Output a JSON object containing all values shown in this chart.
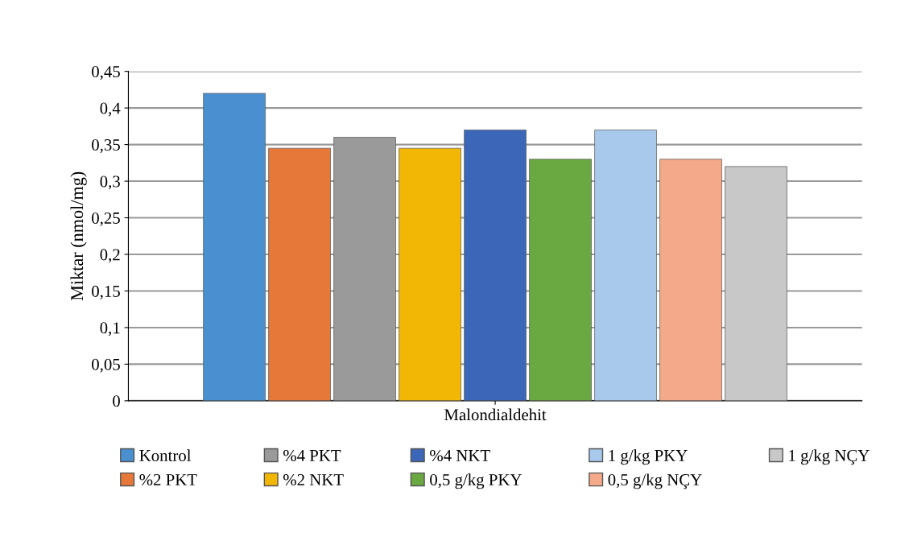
{
  "chart_data": {
    "type": "bar",
    "ylabel": "Miktar (nmol/mg)",
    "categories": [
      "Malondialdehit"
    ],
    "series": [
      {
        "name": "Kontrol",
        "color": "#4a8fd0",
        "values": [
          0.42
        ]
      },
      {
        "name": "%2 PKT",
        "color": "#e6783a",
        "values": [
          0.345
        ]
      },
      {
        "name": "%4 PKT",
        "color": "#9a9a9a",
        "values": [
          0.36
        ]
      },
      {
        "name": "%2 NKT",
        "color": "#f2b705",
        "values": [
          0.345
        ]
      },
      {
        "name": "%4 NKT",
        "color": "#3c67b8",
        "values": [
          0.37
        ]
      },
      {
        "name": "0,5 g/kg PKY",
        "color": "#6aa842",
        "values": [
          0.33
        ]
      },
      {
        "name": "1 g/kg PKY",
        "color": "#a8c8ec",
        "values": [
          0.37
        ]
      },
      {
        "name": "0,5 g/kg NÇY",
        "color": "#f4a98a",
        "values": [
          0.33
        ]
      },
      {
        "name": "1 g/kg NÇY",
        "color": "#c8c8c8",
        "values": [
          0.32
        ]
      }
    ],
    "ylim": [
      0,
      0.45
    ],
    "yticks": [
      {
        "value": 0,
        "label": "0"
      },
      {
        "value": 0.05,
        "label": "0,05"
      },
      {
        "value": 0.1,
        "label": "0,1"
      },
      {
        "value": 0.15,
        "label": "0,15"
      },
      {
        "value": 0.2,
        "label": "0,2"
      },
      {
        "value": 0.25,
        "label": "0,25"
      },
      {
        "value": 0.3,
        "label": "0,3"
      },
      {
        "value": 0.35,
        "label": "0,35"
      },
      {
        "value": 0.4,
        "label": "0,4"
      },
      {
        "value": 0.45,
        "label": "0,45"
      }
    ],
    "grid": "y",
    "legend": "bottom"
  }
}
